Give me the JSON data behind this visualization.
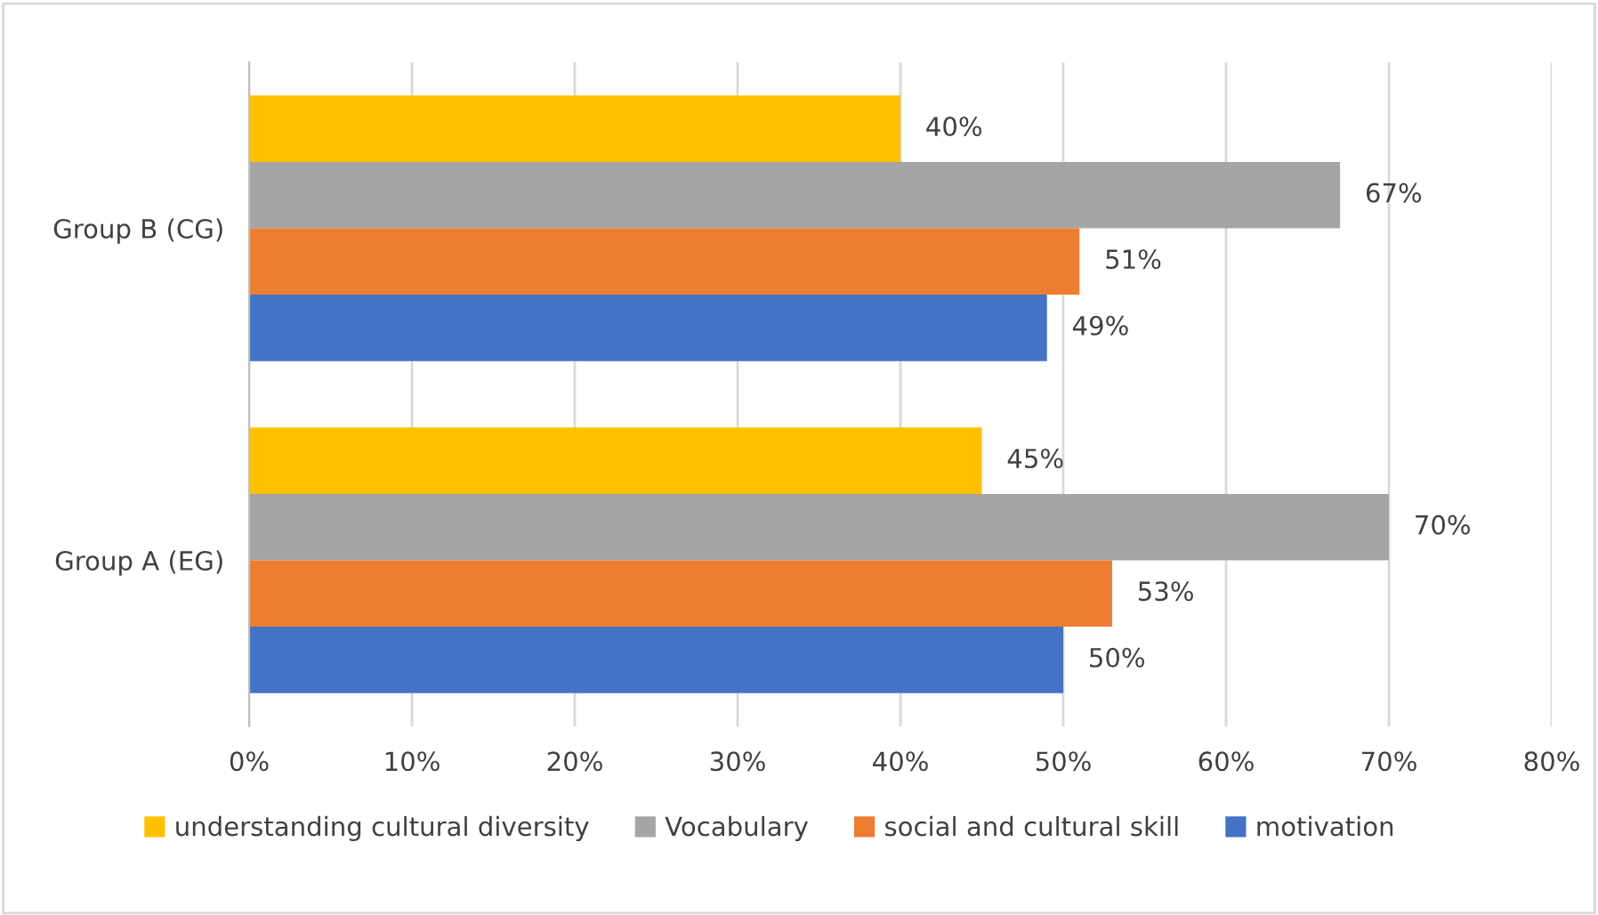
{
  "chart_data": {
    "type": "bar",
    "orientation": "horizontal",
    "categories": [
      "Group B (CG)",
      "Group A (EG)"
    ],
    "series": [
      {
        "name": "understanding cultural diversity",
        "color": "#ffc000",
        "values": [
          40,
          45
        ],
        "value_labels": [
          "40%",
          "45%"
        ]
      },
      {
        "name": "Vocabulary",
        "color": "#a5a5a5",
        "values": [
          67,
          70
        ],
        "value_labels": [
          "67%",
          "70%"
        ]
      },
      {
        "name": "social and cultural skill",
        "color": "#ed7d31",
        "values": [
          51,
          53
        ],
        "value_labels": [
          "51%",
          "53%"
        ]
      },
      {
        "name": "motivation",
        "color": "#4472c4",
        "values": [
          49,
          50
        ],
        "value_labels": [
          "49%",
          "50%"
        ]
      }
    ],
    "xlim": [
      0,
      80
    ],
    "xticks": [
      {
        "value": 0,
        "label": "0%"
      },
      {
        "value": 10,
        "label": "10%"
      },
      {
        "value": 20,
        "label": "20%"
      },
      {
        "value": 30,
        "label": "30%"
      },
      {
        "value": 40,
        "label": "40%"
      },
      {
        "value": 50,
        "label": "50%"
      },
      {
        "value": 60,
        "label": "60%"
      },
      {
        "value": 70,
        "label": "70%"
      },
      {
        "value": 80,
        "label": "80%"
      }
    ],
    "grid": "x",
    "legend": "bottom"
  }
}
